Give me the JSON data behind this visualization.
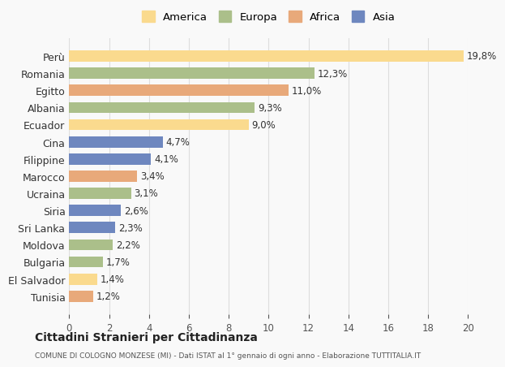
{
  "categories": [
    "Perù",
    "Romania",
    "Egitto",
    "Albania",
    "Ecuador",
    "Cina",
    "Filippine",
    "Marocco",
    "Ucraina",
    "Siria",
    "Sri Lanka",
    "Moldova",
    "Bulgaria",
    "El Salvador",
    "Tunisia"
  ],
  "values": [
    19.8,
    12.3,
    11.0,
    9.3,
    9.0,
    4.7,
    4.1,
    3.4,
    3.1,
    2.6,
    2.3,
    2.2,
    1.7,
    1.4,
    1.2
  ],
  "labels": [
    "19,8%",
    "12,3%",
    "11,0%",
    "9,3%",
    "9,0%",
    "4,7%",
    "4,1%",
    "3,4%",
    "3,1%",
    "2,6%",
    "2,3%",
    "2,2%",
    "1,7%",
    "1,4%",
    "1,2%"
  ],
  "colors": [
    "#FADA8E",
    "#ABBF8A",
    "#E8A97A",
    "#ABBF8A",
    "#FADA8E",
    "#6E87BF",
    "#6E87BF",
    "#E8A97A",
    "#ABBF8A",
    "#6E87BF",
    "#6E87BF",
    "#ABBF8A",
    "#ABBF8A",
    "#FADA8E",
    "#E8A97A"
  ],
  "legend_labels": [
    "America",
    "Europa",
    "Africa",
    "Asia"
  ],
  "legend_colors": [
    "#FADA8E",
    "#ABBF8A",
    "#E8A97A",
    "#6E87BF"
  ],
  "xlim": [
    0,
    20
  ],
  "xticks": [
    0,
    2,
    4,
    6,
    8,
    10,
    12,
    14,
    16,
    18,
    20
  ],
  "title": "Cittadini Stranieri per Cittadinanza",
  "subtitle": "COMUNE DI COLOGNO MONZESE (MI) - Dati ISTAT al 1° gennaio di ogni anno - Elaborazione TUTTITALIA.IT",
  "background_color": "#f9f9f9",
  "grid_color": "#dddddd"
}
